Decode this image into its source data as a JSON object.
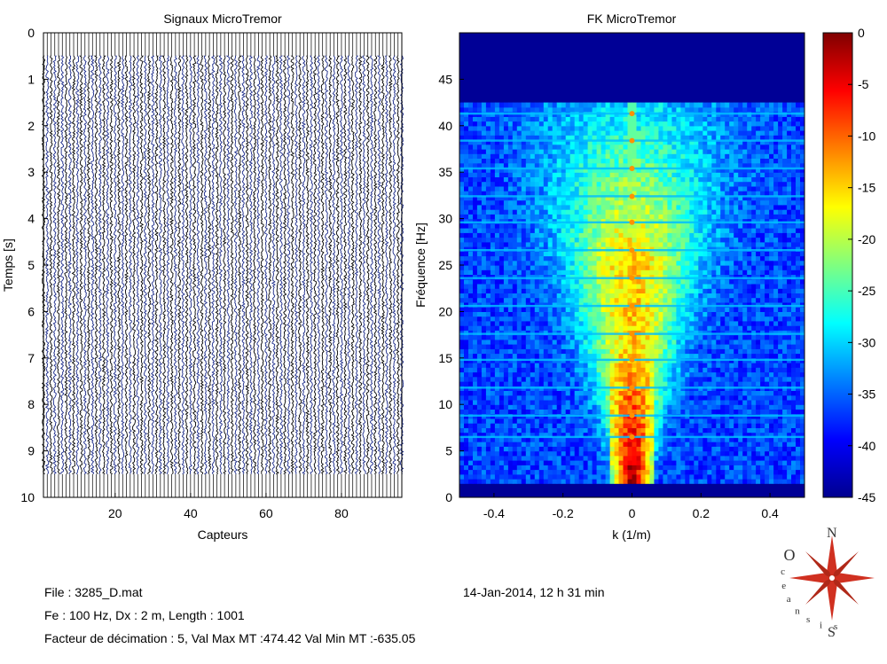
{
  "figure": {
    "background": "#ffffff",
    "info": {
      "file": "File : 3285_D.mat",
      "params": "Fe : 100 Hz, Dx : 2 m, Length : 1001",
      "decimation": "Facteur de décimation : 5, Val Max MT :474.42 Val Min MT :-635.05",
      "date": "14-Jan-2014,  12 h 31 min"
    },
    "logo": {
      "letters": [
        "O",
        "c",
        "e",
        "a",
        "n",
        "s",
        "i",
        "s"
      ],
      "compass": [
        "N",
        "S"
      ],
      "color": "#d03020"
    }
  },
  "chart_data": [
    {
      "type": "line",
      "title": "Signaux MicroTremor",
      "xlabel": "Capteurs",
      "ylabel": "Temps [s]",
      "xlim": [
        1,
        96
      ],
      "ylim": [
        10,
        0
      ],
      "y_reversed": true,
      "xticks": [
        "20",
        "40",
        "60",
        "80"
      ],
      "xtick_values": [
        20,
        40,
        60,
        80
      ],
      "yticks": [
        "0",
        "1",
        "2",
        "3",
        "4",
        "5",
        "6",
        "7",
        "8",
        "9",
        "10"
      ],
      "ytick_values": [
        0,
        1,
        2,
        3,
        4,
        5,
        6,
        7,
        8,
        9,
        10
      ],
      "num_traces": 96,
      "signal_time_range": [
        0.5,
        9.5
      ],
      "trace_color": "#000000",
      "noise_color": "#1a2a8a",
      "grid": false
    },
    {
      "type": "heatmap",
      "title": "FK MicroTremor",
      "xlabel": "k (1/m)",
      "ylabel": "Fréquence [Hz]",
      "xlim": [
        -0.5,
        0.5
      ],
      "ylim": [
        0,
        50
      ],
      "xticks": [
        "-0.4",
        "-0.2",
        "0",
        "0.2",
        "0.4"
      ],
      "xtick_values": [
        -0.4,
        -0.2,
        0,
        0.2,
        0.4
      ],
      "yticks": [
        "0",
        "5",
        "10",
        "15",
        "20",
        "25",
        "30",
        "35",
        "40",
        "45"
      ],
      "ytick_values": [
        0,
        5,
        10,
        15,
        20,
        25,
        30,
        35,
        40,
        45
      ],
      "colorbar": {
        "range": [
          -45,
          0
        ],
        "ticks": [
          "0",
          "-5",
          "-10",
          "-15",
          "-20",
          "-25",
          "-30",
          "-35",
          "-40",
          "-45"
        ],
        "tick_values": [
          0,
          -5,
          -10,
          -15,
          -20,
          -25,
          -30,
          -35,
          -40,
          -45
        ],
        "colormap": "jet"
      },
      "harmonic_lines_hz": [
        41.3,
        38.4,
        35.4,
        32.4,
        29.6,
        26.6,
        23.6,
        20.6,
        17.6,
        14.8,
        11.8,
        8.8,
        6.5
      ],
      "signal_max_freq_hz": 42,
      "grid": false
    }
  ]
}
